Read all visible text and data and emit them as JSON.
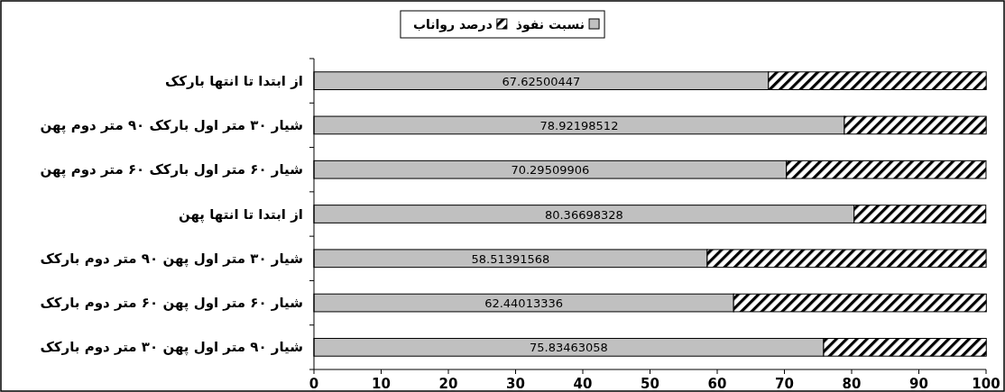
{
  "chart_data": {
    "type": "bar",
    "orientation": "horizontal",
    "stacked": true,
    "legend": "top",
    "grid": false,
    "categories": [
      "از ابتدا تا انتها بارکک",
      "شیار ۳۰ متر اول بارکک ۹۰ متر دوم پهن",
      "شیار ۶۰ متر اول بارکک ۶۰ متر دوم پهن",
      "از ابتدا تا انتها پهن",
      "شیار ۳۰ متر اول پهن ۹۰ متر دوم بارکک",
      "شیار ۶۰ متر اول پهن ۶۰ متر دوم بارکک",
      "شیار ۹۰ متر اول پهن ۳۰ متر دوم بارکک"
    ],
    "series": [
      {
        "name": "نسبت نفوذ",
        "color": "#c0c0c0",
        "values": [
          67.62500447,
          78.92198512,
          70.29509906,
          80.36698328,
          58.51391568,
          62.44013336,
          75.83463058
        ],
        "value_labels": [
          "67.62500447",
          "78.92198512",
          "70.29509906",
          "80.36698328",
          "58.51391568",
          "62.44013336",
          "75.83463058"
        ]
      },
      {
        "name": "درصد رواناب",
        "color": "#000000",
        "values": [
          32.4,
          21.1,
          29.7,
          19.6,
          41.5,
          37.6,
          24.2
        ]
      }
    ],
    "xlim": [
      0,
      100
    ],
    "xticks": [
      0,
      10,
      20,
      30,
      40,
      50,
      60,
      70,
      80,
      90,
      100
    ]
  }
}
